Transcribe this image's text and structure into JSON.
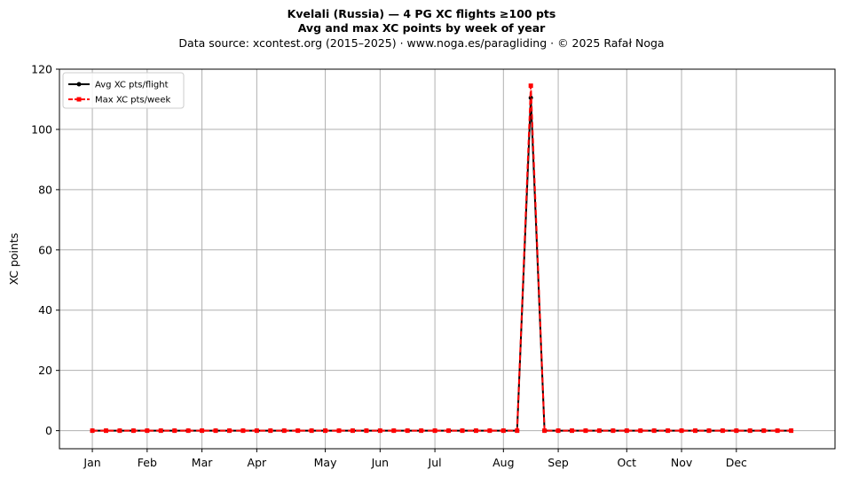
{
  "header": {
    "title": "Kvelali (Russia)  —  4 PG XC flights ≥100 pts",
    "subtitle": "Avg and max XC points by week of year",
    "source": "Data source: xcontest.org (2015–2025)  ·  www.noga.es/paragliding  ·  © 2025 Rafał Noga"
  },
  "chart_data": {
    "type": "line",
    "title": "Kvelali (Russia)  —  4 PG XC flights ≥100 pts",
    "subtitle": "Avg and max XC points by week of year",
    "xlabel": "",
    "ylabel": "XC points",
    "x_domain": "week of year",
    "xlim": [
      -2.4,
      54.2
    ],
    "ylim": [
      -6,
      120
    ],
    "grid": true,
    "legend_position": "upper-left",
    "x_ticks": [
      {
        "label": "Jan",
        "week": 0
      },
      {
        "label": "Feb",
        "week": 4
      },
      {
        "label": "Mar",
        "week": 8
      },
      {
        "label": "Apr",
        "week": 12
      },
      {
        "label": "May",
        "week": 17
      },
      {
        "label": "Jun",
        "week": 21
      },
      {
        "label": "Jul",
        "week": 25
      },
      {
        "label": "Aug",
        "week": 30
      },
      {
        "label": "Sep",
        "week": 34
      },
      {
        "label": "Oct",
        "week": 39
      },
      {
        "label": "Nov",
        "week": 43
      },
      {
        "label": "Dec",
        "week": 47
      }
    ],
    "y_ticks": [
      0,
      20,
      40,
      60,
      80,
      100,
      120
    ],
    "x": [
      0,
      1,
      2,
      3,
      4,
      5,
      6,
      7,
      8,
      9,
      10,
      11,
      12,
      13,
      14,
      15,
      16,
      17,
      18,
      19,
      20,
      21,
      22,
      23,
      24,
      25,
      26,
      27,
      28,
      29,
      30,
      31,
      32,
      33,
      34,
      35,
      36,
      37,
      38,
      39,
      40,
      41,
      42,
      43,
      44,
      45,
      46,
      47,
      48,
      49,
      50,
      51
    ],
    "series": [
      {
        "name": "Avg XC pts/flight",
        "color": "#000000",
        "style": "solid",
        "marker": "circle",
        "values": [
          0,
          0,
          0,
          0,
          0,
          0,
          0,
          0,
          0,
          0,
          0,
          0,
          0,
          0,
          0,
          0,
          0,
          0,
          0,
          0,
          0,
          0,
          0,
          0,
          0,
          0,
          0,
          0,
          0,
          0,
          0,
          0,
          110.5,
          0,
          0,
          0,
          0,
          0,
          0,
          0,
          0,
          0,
          0,
          0,
          0,
          0,
          0,
          0,
          0,
          0,
          0,
          0
        ]
      },
      {
        "name": "Max XC pts/week",
        "color": "#ff0000",
        "style": "dashed",
        "marker": "square",
        "values": [
          0,
          0,
          0,
          0,
          0,
          0,
          0,
          0,
          0,
          0,
          0,
          0,
          0,
          0,
          0,
          0,
          0,
          0,
          0,
          0,
          0,
          0,
          0,
          0,
          0,
          0,
          0,
          0,
          0,
          0,
          0,
          0,
          114.5,
          0,
          0,
          0,
          0,
          0,
          0,
          0,
          0,
          0,
          0,
          0,
          0,
          0,
          0,
          0,
          0,
          0,
          0,
          0
        ]
      }
    ]
  }
}
